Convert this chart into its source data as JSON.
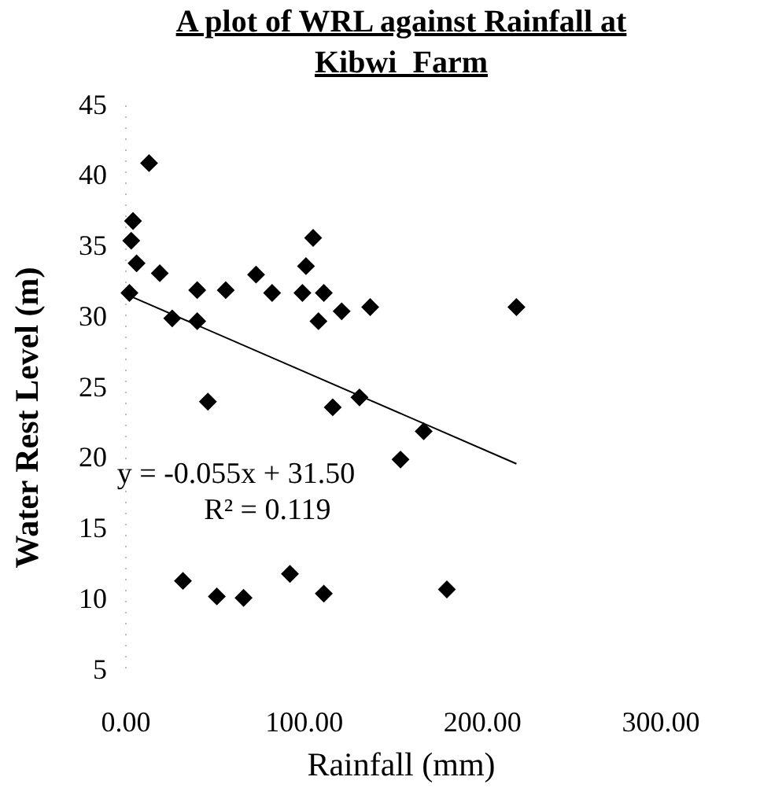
{
  "chart_data": {
    "type": "scatter",
    "title": "A plot of WRL against Rainfall at Kibwi_Farm",
    "xlabel": "Rainfall (mm)",
    "ylabel": "Water Rest Level (m)",
    "xlim": [
      0,
      300
    ],
    "ylim": [
      5,
      45
    ],
    "xticks": [
      {
        "value": 0,
        "label": "0.00"
      },
      {
        "value": 100,
        "label": "100.00"
      },
      {
        "value": 200,
        "label": "200.00"
      },
      {
        "value": 300,
        "label": "300.00"
      }
    ],
    "yticks": [
      5,
      10,
      15,
      20,
      25,
      30,
      35,
      40,
      45
    ],
    "grid": false,
    "marker": "diamond",
    "annotations": [
      "y = -0.055x + 31.50",
      "R² = 0.119"
    ],
    "series": [
      {
        "color": "#000000",
        "x": [
          13,
          4,
          3,
          6,
          19,
          26,
          2,
          40,
          56,
          40,
          73,
          82,
          105,
          101,
          99,
          111,
          108,
          121,
          137,
          219,
          46,
          116,
          131,
          154,
          167,
          32,
          51,
          66,
          92,
          111,
          180
        ],
        "values": [
          40.8,
          36.7,
          35.3,
          33.7,
          33,
          29.8,
          31.6,
          31.8,
          31.8,
          29.6,
          32.9,
          31.6,
          35.5,
          33.5,
          31.6,
          31.6,
          29.6,
          30.3,
          30.6,
          30.6,
          23.9,
          23.5,
          24.2,
          19.8,
          21.8,
          11.2,
          10.1,
          10,
          11.7,
          10.3,
          10.6
        ]
      },
      {
        "type": "line",
        "color": "#000000",
        "marker": "none",
        "x": [
          2,
          219
        ],
        "values": [
          31.4,
          19.5
        ]
      }
    ]
  }
}
